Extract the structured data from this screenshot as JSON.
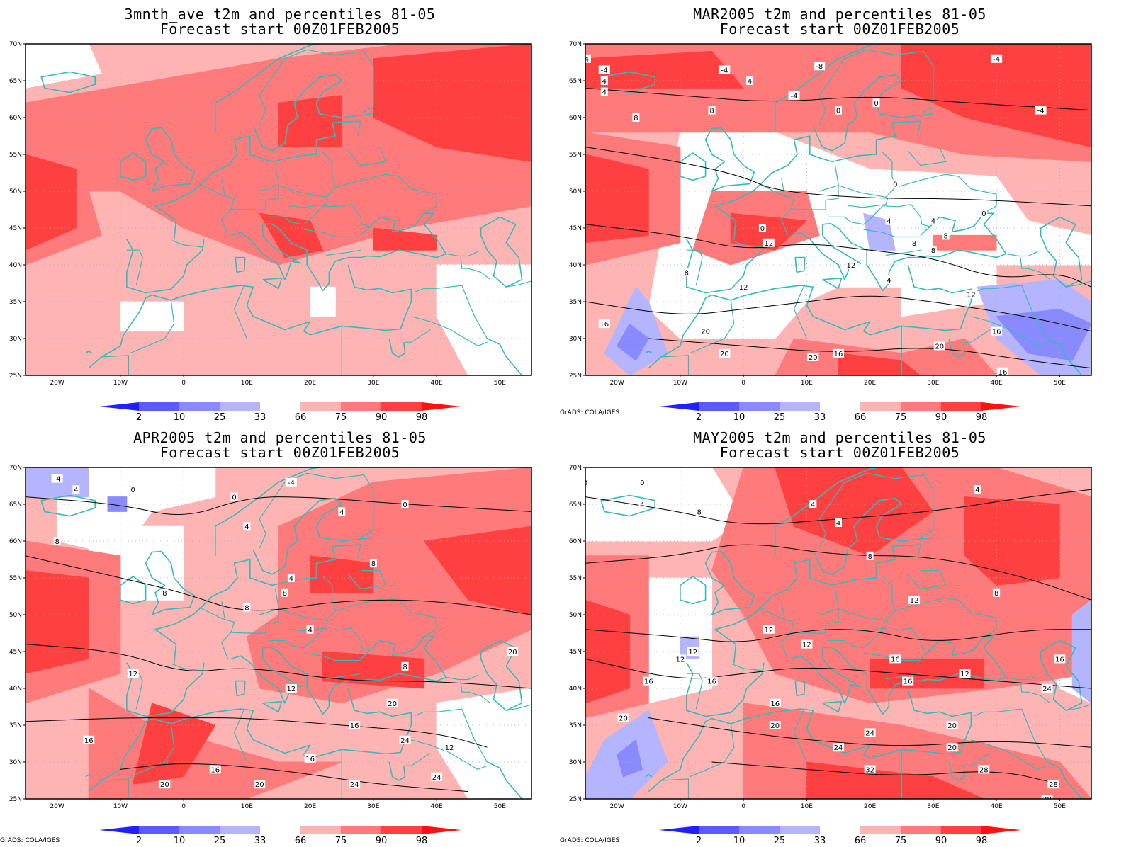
{
  "panels": [
    {
      "title": "3mnth_ave t2m and percentiles 81-05",
      "subtitle": "Forecast start 00Z01FEB2005",
      "contour_labels": [],
      "credit": ""
    },
    {
      "title": "MAR2005 t2m and percentiles 81-05",
      "subtitle": "Forecast start 00Z01FEB2005",
      "contour_labels": [
        "-4",
        "-8",
        "-4",
        "-4",
        "4",
        "4",
        "-4",
        "0",
        "4",
        "8",
        "0",
        "0",
        "4",
        "8",
        "-4",
        "0",
        "4",
        "8",
        "12",
        "12",
        "12",
        "8",
        "0",
        "12",
        "4",
        "16",
        "8",
        "16",
        "20",
        "20",
        "16",
        "20",
        "16",
        "20",
        "8",
        "-4"
      ],
      "credit": "GrADS: COLA/IGES"
    },
    {
      "title": "APR2005 t2m and percentiles 81-05",
      "subtitle": "Forecast start 00Z01FEB2005",
      "contour_labels": [
        "-4",
        "0",
        "4",
        "-4",
        "4",
        "0",
        "0",
        "4",
        "8",
        "4",
        "8",
        "8",
        "8",
        "8",
        "4",
        "12",
        "12",
        "8",
        "16",
        "16",
        "16",
        "20",
        "20",
        "24",
        "20",
        "12",
        "24",
        "24",
        "20",
        "16"
      ],
      "credit": "GrADS: COLA/IGES"
    },
    {
      "title": "MAY2005 t2m and percentiles 81-05",
      "subtitle": "Forecast start 00Z01FEB2005",
      "contour_labels": [
        "0",
        "0",
        "4",
        "8",
        "4",
        "4",
        "4",
        "8",
        "12",
        "8",
        "12",
        "12",
        "12",
        "16",
        "12",
        "16",
        "16",
        "16",
        "12",
        "16",
        "16",
        "20",
        "20",
        "24",
        "24",
        "24",
        "20",
        "32",
        "28",
        "28",
        "20",
        "28"
      ],
      "credit": "GrADS: COLA/IGES"
    }
  ],
  "axes": {
    "y_ticks": [
      "70N",
      "65N",
      "60N",
      "55N",
      "50N",
      "45N",
      "40N",
      "35N",
      "30N",
      "25N"
    ],
    "x_ticks": [
      "20W",
      "10W",
      "0",
      "10E",
      "20E",
      "30E",
      "40E",
      "50E"
    ]
  },
  "colorbar": {
    "labels": [
      "2",
      "10",
      "25",
      "33",
      "66",
      "75",
      "90",
      "98"
    ],
    "colors": {
      "below_2": "#1f1fff",
      "2_10": "#5a5aff",
      "10_25": "#8a8aff",
      "25_33": "#b4b4ff",
      "33_66": "#ffffff",
      "66_75": "#ffb4b4",
      "75_90": "#ff7a7a",
      "90_98": "#ff4040",
      "above_98": "#ff1010"
    }
  },
  "colors": {
    "coastline": "#33bbbb",
    "contour": "#000000",
    "grid": "#aaaaaa",
    "frame": "#000000"
  }
}
